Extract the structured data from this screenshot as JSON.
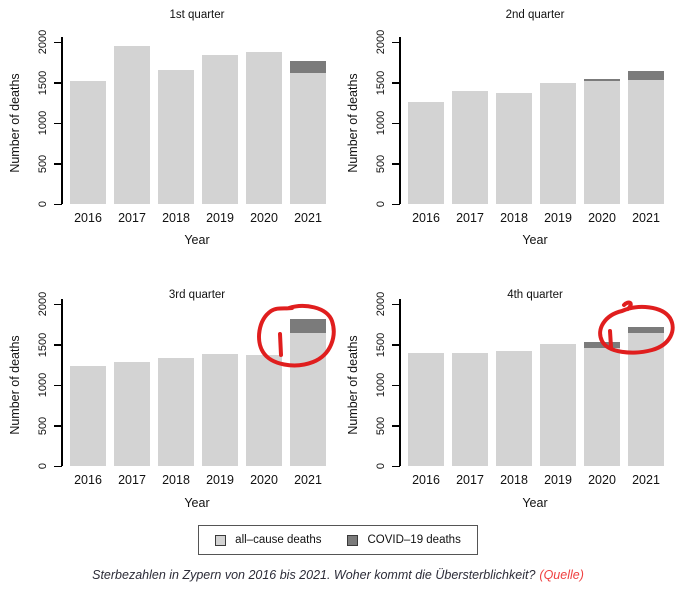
{
  "colors": {
    "all_cause": "#d3d3d3",
    "covid": "#7b7b7b",
    "annotation_red": "#e01e1e",
    "axis": "#000000",
    "link_red": "#ef4040"
  },
  "chart_data": [
    {
      "type": "bar",
      "stacked": true,
      "title": "1st quarter",
      "xlabel": "Year",
      "ylabel": "Number of deaths",
      "ylim": [
        0,
        2000
      ],
      "yticks": [
        0,
        500,
        1000,
        1500,
        2000
      ],
      "categories": [
        "2016",
        "2017",
        "2018",
        "2019",
        "2020",
        "2021"
      ],
      "series": [
        {
          "name": "all-cause deaths",
          "values": [
            1520,
            1945,
            1655,
            1845,
            1880,
            1620
          ]
        },
        {
          "name": "COVID-19 deaths",
          "values": [
            0,
            0,
            0,
            0,
            0,
            145
          ]
        }
      ],
      "annotation": null
    },
    {
      "type": "bar",
      "stacked": true,
      "title": "2nd quarter",
      "xlabel": "Year",
      "ylabel": "Number of deaths",
      "ylim": [
        0,
        2000
      ],
      "yticks": [
        0,
        500,
        1000,
        1500,
        2000
      ],
      "categories": [
        "2016",
        "2017",
        "2018",
        "2019",
        "2020",
        "2021"
      ],
      "series": [
        {
          "name": "all-cause deaths",
          "values": [
            1260,
            1390,
            1375,
            1495,
            1520,
            1525
          ]
        },
        {
          "name": "COVID-19 deaths",
          "values": [
            0,
            0,
            0,
            0,
            25,
            115
          ]
        }
      ],
      "annotation": null
    },
    {
      "type": "bar",
      "stacked": true,
      "title": "3rd quarter",
      "xlabel": "Year",
      "ylabel": "Number of deaths",
      "ylim": [
        0,
        2000
      ],
      "yticks": [
        0,
        500,
        1000,
        1500,
        2000
      ],
      "categories": [
        "2016",
        "2017",
        "2018",
        "2019",
        "2020",
        "2021"
      ],
      "series": [
        {
          "name": "all-cause deaths",
          "values": [
            1240,
            1285,
            1330,
            1380,
            1375,
            1640
          ]
        },
        {
          "name": "COVID-19 deaths",
          "values": [
            0,
            0,
            0,
            0,
            0,
            170
          ]
        }
      ],
      "annotation": "red-circle-2021"
    },
    {
      "type": "bar",
      "stacked": true,
      "title": "4th quarter",
      "xlabel": "Year",
      "ylabel": "Number of deaths",
      "ylim": [
        0,
        2000
      ],
      "yticks": [
        0,
        500,
        1000,
        1500,
        2000
      ],
      "categories": [
        "2016",
        "2017",
        "2018",
        "2019",
        "2020",
        "2021"
      ],
      "series": [
        {
          "name": "all-cause deaths",
          "values": [
            1400,
            1390,
            1420,
            1505,
            1460,
            1640
          ]
        },
        {
          "name": "COVID-19 deaths",
          "values": [
            0,
            0,
            0,
            0,
            75,
            80
          ]
        }
      ],
      "annotation": "red-circle-2021"
    }
  ],
  "legend": {
    "items": [
      {
        "label": "all–cause deaths",
        "color": "#d3d3d3"
      },
      {
        "label": "COVID–19 deaths",
        "color": "#7b7b7b"
      }
    ]
  },
  "caption": {
    "text": "Sterbezahlen in Zypern von 2016 bis 2021. Woher kommt die Übersterblichkeit?",
    "source_label": "(Quelle)"
  }
}
